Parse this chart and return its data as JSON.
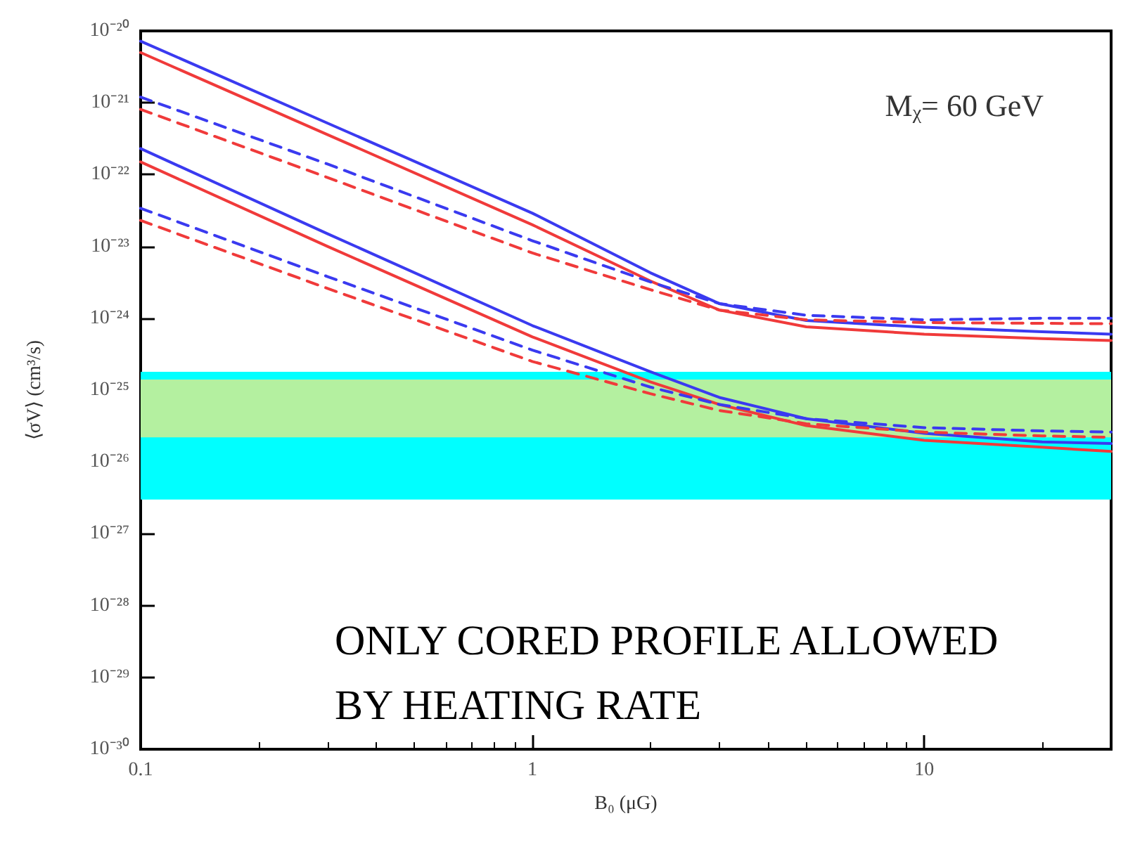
{
  "chart_data": {
    "type": "line",
    "xlabel": "B₀ (μG)",
    "ylabel": "⟨σV⟩ (cm³/s)",
    "log": "xy",
    "line_style": "solid",
    "xlim": [
      0.1,
      30
    ],
    "xticks": [
      0.1,
      1,
      10
    ],
    "ylim": [
      1e-30,
      1e-20
    ],
    "yticks": [
      {
        "value": 1e-30,
        "label": "10⁻³⁰"
      },
      {
        "value": 1e-29,
        "label": "10⁻²⁹"
      },
      {
        "value": 1e-28,
        "label": "10⁻²⁸"
      },
      {
        "value": 1e-27,
        "label": "10⁻²⁷"
      },
      {
        "value": 1e-26,
        "label": "10⁻²⁶"
      },
      {
        "value": 1e-25,
        "label": "10⁻²⁵"
      },
      {
        "value": 1e-24,
        "label": "10⁻²⁴"
      },
      {
        "value": 1e-23,
        "label": "10⁻²³"
      },
      {
        "value": 1e-22,
        "label": "10⁻²²"
      },
      {
        "value": 1e-21,
        "label": "10⁻²¹"
      },
      {
        "value": 1e-20,
        "label": "10⁻²⁰"
      }
    ],
    "x": [
      0.1,
      0.3,
      1,
      2,
      3,
      5,
      10,
      20,
      30
    ],
    "series": [
      {
        "color": "#3a3af0",
        "values": [
          7.2e-21,
          5.2e-22,
          2.9e-23,
          4.3e-24,
          1.6e-24,
          9.3e-25,
          7.5e-25,
          6.5e-25,
          6e-25
        ]
      },
      {
        "color": "#f03a3a",
        "values": [
          5e-21,
          3.6e-22,
          2e-23,
          3.3e-24,
          1.3e-24,
          7.6e-25,
          6e-25,
          5.2e-25,
          4.9e-25
        ]
      },
      {
        "color": "#3a3af0",
        "line_style": "dashed",
        "values": [
          1.2e-21,
          1.4e-22,
          1.2e-23,
          3.2e-24,
          1.6e-24,
          1.1e-24,
          9.5e-25,
          1e-24,
          1e-24
        ]
      },
      {
        "color": "#f03a3a",
        "line_style": "dashed",
        "values": [
          8.1e-22,
          9.1e-23,
          8.1e-24,
          2.5e-24,
          1.3e-24,
          9.5e-25,
          8.7e-25,
          8.5e-25,
          8.4e-25
        ]
      },
      {
        "color": "#3a3af0",
        "values": [
          2.3e-22,
          1.5e-23,
          7.9e-25,
          1.8e-25,
          7.9e-26,
          4e-26,
          2.5e-26,
          1.9e-26,
          1.8e-26
        ]
      },
      {
        "color": "#f03a3a",
        "values": [
          1.5e-22,
          1e-23,
          5.5e-25,
          1.3e-25,
          6.3e-26,
          3.2e-26,
          2e-26,
          1.6e-26,
          1.4e-26
        ]
      },
      {
        "color": "#3a3af0",
        "line_style": "dashed",
        "values": [
          3.4e-23,
          3.8e-24,
          3.6e-25,
          1.1e-25,
          6.3e-26,
          4e-26,
          3e-26,
          2.7e-26,
          2.6e-26
        ]
      },
      {
        "color": "#f03a3a",
        "line_style": "dashed",
        "values": [
          2.3e-23,
          2.6e-24,
          2.5e-25,
          8.9e-26,
          5.2e-26,
          3.4e-26,
          2.6e-26,
          2.3e-26,
          2.2e-26
        ]
      }
    ],
    "bands": [
      {
        "axis": "y",
        "from": 3e-27,
        "to": 1.8e-25,
        "color": "#00ffff"
      },
      {
        "axis": "y",
        "from": 2.2e-26,
        "to": 1.4e-25,
        "color": "#b4f0a0"
      }
    ],
    "annotations": [
      "M$_{χ}$= 60 GeV",
      "ONLY CORED PROFILE ALLOWED\nBY HEATING RATE"
    ]
  }
}
